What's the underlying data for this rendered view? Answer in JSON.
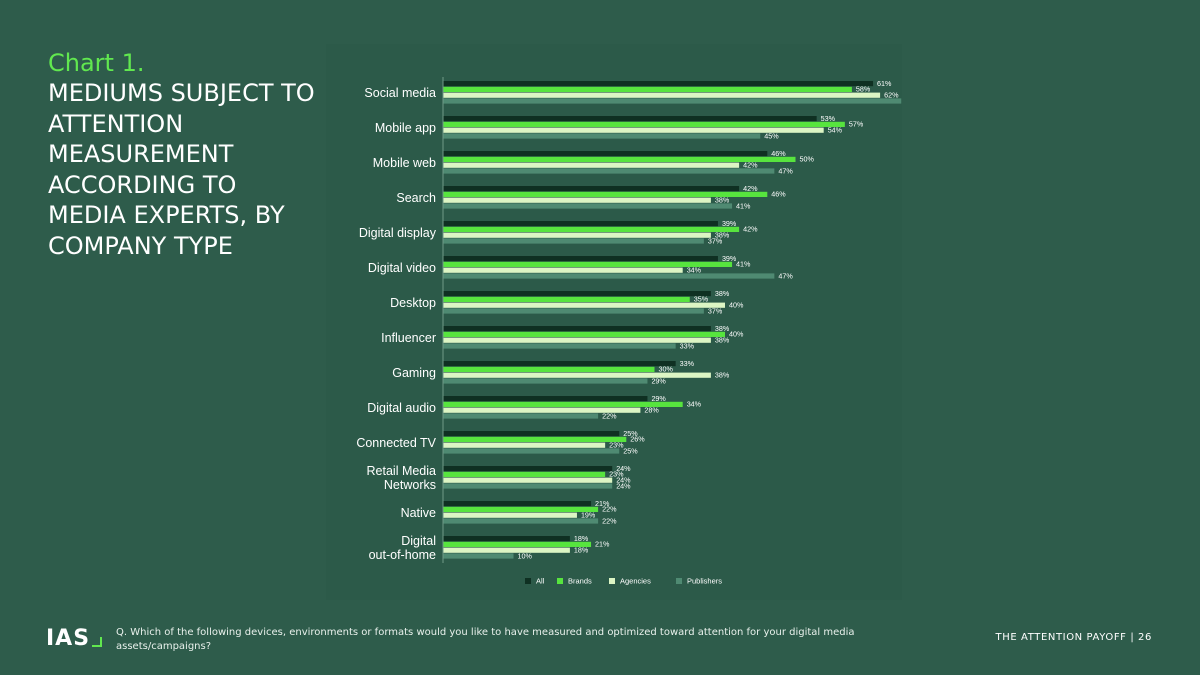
{
  "header": {
    "chart_number": "Chart 1.",
    "title": "MEDIUMS SUBJECT TO ATTENTION MEASUREMENT ACCORDING TO MEDIA EXPERTS, BY COMPANY TYPE"
  },
  "chart_data": {
    "type": "bar",
    "orientation": "horizontal",
    "categories": [
      [
        "Social media"
      ],
      [
        "Mobile app"
      ],
      [
        "Mobile web"
      ],
      [
        "Search"
      ],
      [
        "Digital display"
      ],
      [
        "Digital video"
      ],
      [
        "Desktop"
      ],
      [
        "Influencer"
      ],
      [
        "Gaming"
      ],
      [
        "Digital audio"
      ],
      [
        "Connected TV"
      ],
      [
        "Retail Media",
        "Networks"
      ],
      [
        "Native"
      ],
      [
        "Digital",
        "out-of-home"
      ]
    ],
    "series": [
      {
        "name": "All",
        "color": "#0f3022",
        "values": [
          61,
          53,
          46,
          42,
          39,
          39,
          38,
          38,
          33,
          29,
          25,
          24,
          21,
          18
        ]
      },
      {
        "name": "Brands",
        "color": "#57e43e",
        "values": [
          58,
          57,
          50,
          46,
          42,
          41,
          35,
          40,
          30,
          34,
          26,
          23,
          22,
          21
        ]
      },
      {
        "name": "Agencies",
        "color": "#dcf5c4",
        "values": [
          62,
          54,
          42,
          38,
          38,
          34,
          40,
          38,
          38,
          28,
          23,
          24,
          19,
          18
        ]
      },
      {
        "name": "Publishers",
        "color": "#4f8a72",
        "values": [
          65,
          45,
          47,
          41,
          37,
          47,
          37,
          33,
          29,
          22,
          25,
          24,
          22,
          10
        ]
      }
    ],
    "value_suffix": "%",
    "xlim": [
      0,
      70
    ],
    "legend_position": "bottom",
    "grid": false
  },
  "footer": {
    "logo": "IAS",
    "question": "Q. Which of the following devices, environments or formats would you like to have measured and optimized toward attention for your digital media assets/campaigns?",
    "page_label": "THE ATTENTION PAYOFF",
    "page_number": "| 26"
  }
}
